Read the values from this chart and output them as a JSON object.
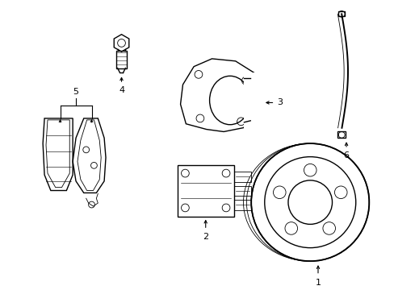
{
  "background_color": "#ffffff",
  "line_color": "#000000",
  "lw": 1.0,
  "tlw": 0.6,
  "fig_width": 4.89,
  "fig_height": 3.6,
  "dpi": 100
}
